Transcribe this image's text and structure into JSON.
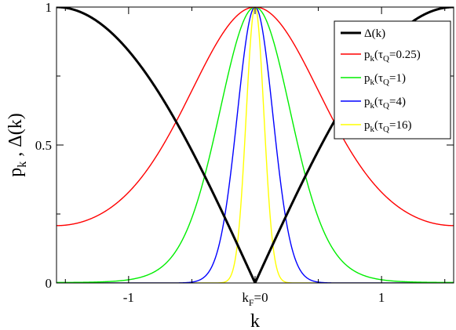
{
  "chart_data": {
    "type": "line",
    "xlabel": "k",
    "ylabel": "p",
    "ylabel_sub": "k",
    "ylabel_rest": " , Δ(k)",
    "xlim": [
      -1.57,
      1.57
    ],
    "ylim": [
      0,
      1
    ],
    "x_ticks": [
      {
        "value": -1,
        "label": "-1"
      },
      {
        "value": 0,
        "label": "k",
        "sub": "F",
        "rest": "=0"
      },
      {
        "value": 1,
        "label": "1"
      }
    ],
    "y_ticks": [
      {
        "value": 0,
        "label": "0"
      },
      {
        "value": 0.5,
        "label": "0.5"
      },
      {
        "value": 1,
        "label": "1"
      }
    ],
    "legend_position": "top-right",
    "series": [
      {
        "id": "delta",
        "name": "Δ(k)",
        "color": "#000000",
        "width": 3,
        "formula": "abs_sin",
        "tau": null
      },
      {
        "id": "tq025",
        "name": "p",
        "name_sub": "k",
        "name_rest": "(τ",
        "name_sub2": "Q",
        "name_tail": "=0.25)",
        "color": "#ff0000",
        "width": 1.4,
        "formula": "lz",
        "tau": 0.25
      },
      {
        "id": "tq1",
        "name": "p",
        "name_sub": "k",
        "name_rest": "(τ",
        "name_sub2": "Q",
        "name_tail": "=1)",
        "color": "#00ee00",
        "width": 1.4,
        "formula": "lz",
        "tau": 1
      },
      {
        "id": "tq4",
        "name": "p",
        "name_sub": "k",
        "name_rest": "(τ",
        "name_sub2": "Q",
        "name_tail": "=4)",
        "color": "#0000ff",
        "width": 1.4,
        "formula": "lz",
        "tau": 4
      },
      {
        "id": "tq16",
        "name": "p",
        "name_sub": "k",
        "name_rest": "(τ",
        "name_sub2": "Q",
        "name_tail": "=16)",
        "color": "#ffff00",
        "width": 1.4,
        "formula": "lz",
        "tau": 16
      }
    ]
  }
}
